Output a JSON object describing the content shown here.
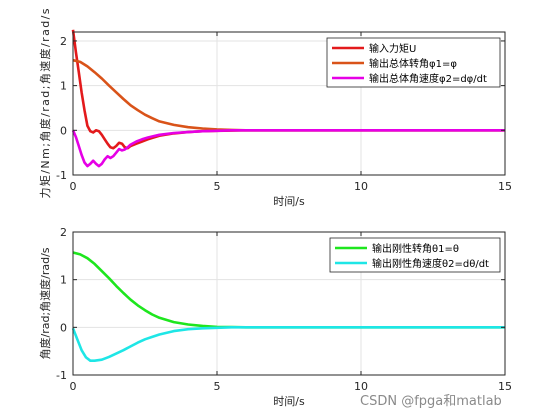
{
  "watermark": "CSDN @fpga和matlab",
  "chart_data": [
    {
      "type": "line",
      "title": "",
      "xlabel": "时间/s",
      "ylabel": "力矩/Nm;角度/rad;角速度/rad/s",
      "xlim": [
        0,
        15
      ],
      "ylim": [
        -1,
        2.2
      ],
      "xticks": [
        0,
        5,
        10,
        15
      ],
      "yticks": [
        -1,
        0,
        1,
        2
      ],
      "grid": true,
      "legend_position": "top-right",
      "series": [
        {
          "name": "输入力矩U",
          "color": "#e31a1c",
          "x": [
            0,
            0.1,
            0.2,
            0.3,
            0.4,
            0.5,
            0.6,
            0.7,
            0.8,
            0.9,
            1.0,
            1.1,
            1.2,
            1.3,
            1.4,
            1.5,
            1.6,
            1.7,
            1.8,
            1.9,
            2.0,
            2.2,
            2.4,
            2.6,
            2.8,
            3.0,
            3.5,
            4.0,
            4.5,
            5.0,
            6.0,
            8.0,
            10.0,
            15.0
          ],
          "y": [
            2.25,
            1.75,
            1.3,
            0.85,
            0.45,
            0.1,
            -0.02,
            -0.05,
            0.0,
            -0.02,
            -0.1,
            -0.2,
            -0.3,
            -0.38,
            -0.4,
            -0.35,
            -0.28,
            -0.3,
            -0.38,
            -0.4,
            -0.35,
            -0.3,
            -0.25,
            -0.2,
            -0.16,
            -0.12,
            -0.07,
            -0.04,
            -0.02,
            -0.01,
            0.0,
            0.0,
            0.0,
            0.0
          ]
        },
        {
          "name": "输出总体转角φ1=φ",
          "color": "#d95319",
          "x": [
            0,
            0.25,
            0.5,
            0.75,
            1.0,
            1.25,
            1.5,
            1.75,
            2.0,
            2.25,
            2.5,
            2.75,
            3.0,
            3.5,
            4.0,
            4.5,
            5.0,
            5.5,
            6.0,
            7.0,
            8.0,
            10.0,
            15.0
          ],
          "y": [
            1.57,
            1.53,
            1.43,
            1.3,
            1.16,
            1.0,
            0.85,
            0.7,
            0.56,
            0.45,
            0.35,
            0.27,
            0.2,
            0.12,
            0.07,
            0.04,
            0.02,
            0.01,
            0.0,
            0.0,
            0.0,
            0.0,
            0.0
          ]
        },
        {
          "name": "输出总体角速度φ2=dφ/dt",
          "color": "#e600e6",
          "x": [
            0,
            0.1,
            0.2,
            0.3,
            0.4,
            0.5,
            0.6,
            0.7,
            0.8,
            0.9,
            1.0,
            1.1,
            1.2,
            1.3,
            1.4,
            1.5,
            1.6,
            1.7,
            1.8,
            1.9,
            2.0,
            2.2,
            2.4,
            2.6,
            2.8,
            3.0,
            3.5,
            4.0,
            4.5,
            5.0,
            5.5,
            6.0,
            8.0,
            10.0,
            15.0
          ],
          "y": [
            0.0,
            -0.15,
            -0.35,
            -0.55,
            -0.72,
            -0.8,
            -0.75,
            -0.68,
            -0.75,
            -0.8,
            -0.75,
            -0.65,
            -0.58,
            -0.62,
            -0.58,
            -0.5,
            -0.42,
            -0.45,
            -0.43,
            -0.38,
            -0.32,
            -0.25,
            -0.2,
            -0.16,
            -0.13,
            -0.1,
            -0.06,
            -0.04,
            -0.02,
            -0.01,
            0.0,
            0.0,
            0.0,
            0.0,
            0.0
          ]
        }
      ]
    },
    {
      "type": "line",
      "title": "",
      "xlabel": "时间/s",
      "ylabel": "角度/rad;角速度/rad/s",
      "xlim": [
        0,
        15
      ],
      "ylim": [
        -1,
        2
      ],
      "xticks": [
        0,
        5,
        10,
        15
      ],
      "yticks": [
        -1,
        0,
        1,
        2
      ],
      "grid": true,
      "legend_position": "top-right",
      "series": [
        {
          "name": "输出刚性转角θ1=θ",
          "color": "#1ee61e",
          "x": [
            0,
            0.25,
            0.5,
            0.75,
            1.0,
            1.25,
            1.5,
            1.75,
            2.0,
            2.25,
            2.5,
            2.75,
            3.0,
            3.5,
            4.0,
            4.5,
            5.0,
            5.5,
            6.0,
            7.0,
            8.0,
            10.0,
            15.0
          ],
          "y": [
            1.57,
            1.53,
            1.45,
            1.33,
            1.18,
            1.03,
            0.87,
            0.72,
            0.58,
            0.46,
            0.36,
            0.27,
            0.2,
            0.11,
            0.06,
            0.03,
            0.01,
            0.005,
            0.0,
            0.0,
            0.0,
            0.0,
            0.0
          ]
        },
        {
          "name": "输出刚性角速度θ2=dθ/dt",
          "color": "#1ee6e6",
          "x": [
            0,
            0.15,
            0.3,
            0.45,
            0.6,
            0.75,
            1.0,
            1.25,
            1.5,
            1.75,
            2.0,
            2.25,
            2.5,
            2.75,
            3.0,
            3.5,
            4.0,
            4.5,
            5.0,
            5.5,
            6.0,
            7.0,
            8.0,
            10.0,
            15.0
          ],
          "y": [
            -0.02,
            -0.25,
            -0.48,
            -0.63,
            -0.7,
            -0.7,
            -0.68,
            -0.62,
            -0.55,
            -0.48,
            -0.4,
            -0.32,
            -0.25,
            -0.2,
            -0.15,
            -0.08,
            -0.04,
            -0.02,
            -0.01,
            0.0,
            0.0,
            0.0,
            0.0,
            0.0,
            0.0
          ]
        }
      ]
    }
  ]
}
